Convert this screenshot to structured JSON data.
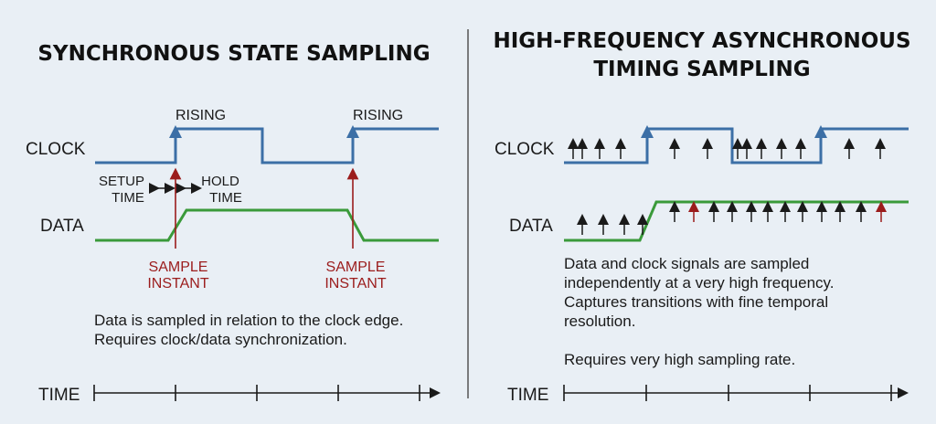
{
  "left": {
    "title": "SYNCHRONOUS STATE SAMPLING",
    "clock_label": "CLOCK",
    "data_label": "DATA",
    "time_label": "TIME",
    "rising_1": "RISING",
    "rising_2": "RISING",
    "setup_line1": "SETUP",
    "setup_line2": "TIME",
    "hold_line1": "HOLD",
    "hold_line2": "TIME",
    "sample1_line1": "SAMPLE",
    "sample1_line2": "INSTANT",
    "sample2_line1": "SAMPLE",
    "sample2_line2": "INSTANT",
    "desc_line1": "Data is sampled in relation to the clock edge.",
    "desc_line2": "Requires clock/data synchronization."
  },
  "right": {
    "title_line1": "HIGH-FREQUENCY ASYNCHRONOUS",
    "title_line2": "TIMING SAMPLING",
    "clock_label": "CLOCK",
    "data_label": "DATA",
    "time_label": "TIME",
    "desc_line1": "Data and clock signals are sampled",
    "desc_line2": "independently at a very high frequency.",
    "desc_line3": "Captures transitions with fine temporal",
    "desc_line4": "resolution.",
    "desc_line5": "Requires very high sampling rate."
  },
  "colors": {
    "clock": "#3c6fa6",
    "data": "#3a9a3a",
    "sample": "#9b1c1c",
    "text": "#1a1a1a",
    "divider": "#555555",
    "background": "#e9eff5"
  }
}
